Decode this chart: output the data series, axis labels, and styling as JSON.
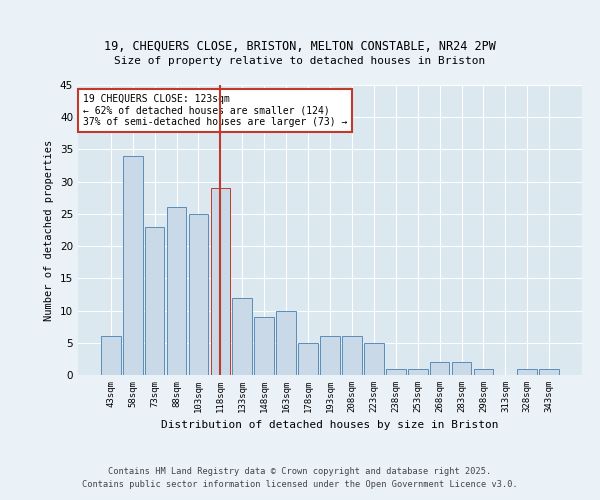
{
  "title1": "19, CHEQUERS CLOSE, BRISTON, MELTON CONSTABLE, NR24 2PW",
  "title2": "Size of property relative to detached houses in Briston",
  "xlabel": "Distribution of detached houses by size in Briston",
  "ylabel": "Number of detached properties",
  "categories": [
    "43sqm",
    "58sqm",
    "73sqm",
    "88sqm",
    "103sqm",
    "118sqm",
    "133sqm",
    "148sqm",
    "163sqm",
    "178sqm",
    "193sqm",
    "208sqm",
    "223sqm",
    "238sqm",
    "253sqm",
    "268sqm",
    "283sqm",
    "298sqm",
    "313sqm",
    "328sqm",
    "343sqm"
  ],
  "values": [
    6,
    34,
    23,
    26,
    25,
    29,
    12,
    9,
    10,
    5,
    6,
    6,
    5,
    1,
    1,
    2,
    2,
    1,
    0,
    1,
    1
  ],
  "bar_color": "#c9d9e8",
  "bar_edge_color": "#5b8db8",
  "highlight_bar_index": 5,
  "highlight_bar_edge_color": "#c0392b",
  "vline_color": "#c0392b",
  "annotation_text": "19 CHEQUERS CLOSE: 123sqm\n← 62% of detached houses are smaller (124)\n37% of semi-detached houses are larger (73) →",
  "annotation_box_color": "#ffffff",
  "annotation_box_edge_color": "#c0392b",
  "ylim": [
    0,
    45
  ],
  "yticks": [
    0,
    5,
    10,
    15,
    20,
    25,
    30,
    35,
    40,
    45
  ],
  "bg_color": "#dce8f0",
  "fig_color": "#eaf1f7",
  "footer1": "Contains HM Land Registry data © Crown copyright and database right 2025.",
  "footer2": "Contains public sector information licensed under the Open Government Licence v3.0."
}
